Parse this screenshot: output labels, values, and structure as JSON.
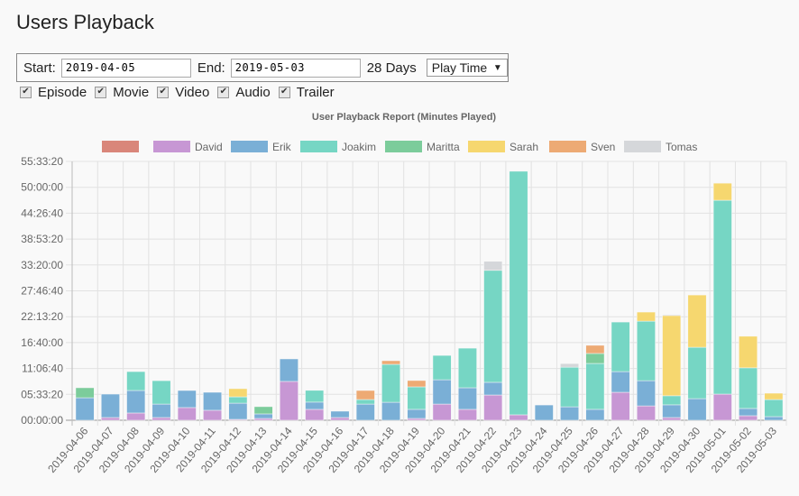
{
  "page": {
    "title": "Users Playback"
  },
  "filters": {
    "start_label": "Start:",
    "start_value": "2019-04-05",
    "end_label": "End:",
    "end_value": "2019-05-03",
    "days_label": "28 Days",
    "metric_selected": "Play Time",
    "types": [
      {
        "label": "Episode",
        "checked": true
      },
      {
        "label": "Movie",
        "checked": true
      },
      {
        "label": "Video",
        "checked": true
      },
      {
        "label": "Audio",
        "checked": true
      },
      {
        "label": "Trailer",
        "checked": true
      }
    ]
  },
  "chart_data": {
    "type": "bar",
    "stacked": true,
    "title": "User Playback Report (Minutes Played)",
    "xlabel": "",
    "ylabel": "",
    "y_unit": "seconds",
    "ylim": [
      0,
      200000
    ],
    "y_ticks": [
      "00:00:00",
      "05:33:20",
      "11:06:40",
      "16:40:00",
      "22:13:20",
      "27:46:40",
      "33:20:00",
      "38:53:20",
      "44:26:40",
      "50:00:00",
      "55:33:20"
    ],
    "legend_position": "top",
    "grid": true,
    "categories": [
      "2019-04-06",
      "2019-04-07",
      "2019-04-08",
      "2019-04-09",
      "2019-04-10",
      "2019-04-11",
      "2019-04-12",
      "2019-04-13",
      "2019-04-14",
      "2019-04-15",
      "2019-04-16",
      "2019-04-17",
      "2019-04-18",
      "2019-04-19",
      "2019-04-20",
      "2019-04-21",
      "2019-04-22",
      "2019-04-23",
      "2019-04-24",
      "2019-04-25",
      "2019-04-26",
      "2019-04-27",
      "2019-04-28",
      "2019-04-29",
      "2019-04-30",
      "2019-05-01",
      "2019-05-02",
      "2019-05-03"
    ],
    "series": [
      {
        "name": "",
        "color": "#d9867a",
        "values": [
          0,
          0,
          0,
          0,
          0,
          0,
          0,
          0,
          0,
          0,
          0,
          0,
          0,
          0,
          0,
          0,
          0,
          0,
          0,
          0,
          0,
          0,
          0,
          0,
          0,
          0,
          0,
          0
        ]
      },
      {
        "name": "David",
        "color": "#c797d4",
        "values": [
          0,
          2100,
          5600,
          2100,
          9800,
          7700,
          700,
          1400,
          30000,
          8400,
          2100,
          0,
          0,
          1400,
          12500,
          8400,
          19500,
          4200,
          0,
          0,
          0,
          21600,
          11100,
          2100,
          0,
          20200,
          3500,
          0
        ]
      },
      {
        "name": "Erik",
        "color": "#7aafd6",
        "values": [
          17400,
          18100,
          17400,
          10400,
          13200,
          13900,
          12500,
          3500,
          17400,
          5600,
          4900,
          12500,
          13900,
          7000,
          18800,
          16700,
          9800,
          0,
          11800,
          10400,
          8400,
          16000,
          19500,
          9800,
          16700,
          0,
          5600,
          2800
        ]
      },
      {
        "name": "Joakim",
        "color": "#76d6c4",
        "values": [
          0,
          0,
          14600,
          18100,
          0,
          0,
          4900,
          0,
          0,
          9100,
          0,
          3500,
          29300,
          17400,
          18800,
          30600,
          86500,
          188200,
          0,
          30600,
          35500,
          38300,
          46000,
          7000,
          39700,
          149800,
          31400,
          13200
        ]
      },
      {
        "name": "Maritta",
        "color": "#7ccc9b",
        "values": [
          7700,
          0,
          0,
          0,
          0,
          0,
          0,
          5600,
          0,
          0,
          0,
          0,
          0,
          0,
          0,
          0,
          0,
          0,
          0,
          0,
          7700,
          0,
          0,
          0,
          0,
          0,
          0,
          0
        ]
      },
      {
        "name": "Sarah",
        "color": "#f6d76f",
        "values": [
          0,
          0,
          0,
          0,
          0,
          0,
          6300,
          0,
          0,
          0,
          0,
          0,
          0,
          0,
          0,
          0,
          0,
          0,
          0,
          0,
          0,
          0,
          7000,
          62000,
          40400,
          13200,
          24400,
          4900
        ]
      },
      {
        "name": "Sven",
        "color": "#edaa74",
        "values": [
          0,
          0,
          0,
          0,
          0,
          0,
          0,
          0,
          0,
          0,
          0,
          7000,
          2800,
          4900,
          0,
          0,
          0,
          0,
          0,
          0,
          6300,
          0,
          0,
          0,
          0,
          0,
          0,
          0
        ]
      },
      {
        "name": "Tomas",
        "color": "#d5d7da",
        "values": [
          0,
          0,
          0,
          0,
          0,
          0,
          0,
          0,
          0,
          0,
          0,
          0,
          0,
          0,
          0,
          0,
          7000,
          0,
          0,
          2800,
          0,
          0,
          0,
          700,
          0,
          0,
          0,
          0
        ]
      }
    ]
  }
}
